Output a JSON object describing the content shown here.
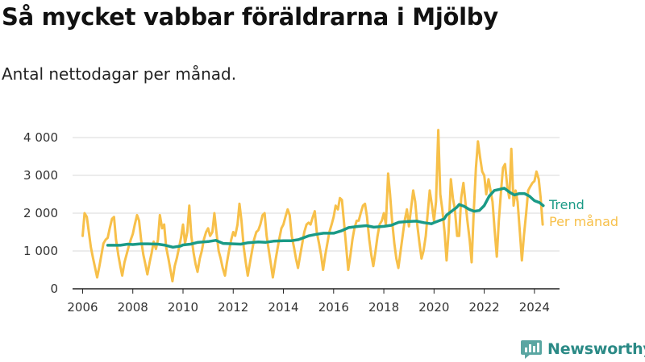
{
  "title": "Så mycket vabbar föräldrarna i Mjölby",
  "subtitle": "Antal nettodagar per månad.",
  "brand": "Newsworthy",
  "colors": {
    "monthly": "#f7c04a",
    "trend": "#1a9a86",
    "grid": "#d9d9d9",
    "axis": "#222222",
    "brand": "#2b8a86"
  },
  "chart_data": {
    "type": "line",
    "xlim": [
      2005.6,
      2025.0
    ],
    "ylim": [
      0,
      4000
    ],
    "xticks": [
      2006,
      2008,
      2010,
      2012,
      2014,
      2016,
      2018,
      2020,
      2022,
      2024
    ],
    "xtick_labels": [
      "2006",
      "2008",
      "2010",
      "2012",
      "2014",
      "2016",
      "2018",
      "2020",
      "2022",
      "2024"
    ],
    "yticks": [
      0,
      1000,
      2000,
      3000,
      4000
    ],
    "ytick_labels": [
      "0",
      "1 000",
      "2 000",
      "3 000",
      "4 000"
    ],
    "grid": "horizontal",
    "series": [
      {
        "name": "Per månad",
        "color": "#f7c04a",
        "points": [
          [
            2006.0,
            1400
          ],
          [
            2006.08,
            2000
          ],
          [
            2006.17,
            1900
          ],
          [
            2006.25,
            1500
          ],
          [
            2006.33,
            1100
          ],
          [
            2006.42,
            800
          ],
          [
            2006.5,
            550
          ],
          [
            2006.58,
            300
          ],
          [
            2006.67,
            600
          ],
          [
            2006.75,
            900
          ],
          [
            2006.83,
            1200
          ],
          [
            2006.92,
            1300
          ],
          [
            2007.0,
            1350
          ],
          [
            2007.08,
            1600
          ],
          [
            2007.17,
            1850
          ],
          [
            2007.25,
            1900
          ],
          [
            2007.33,
            1300
          ],
          [
            2007.42,
            900
          ],
          [
            2007.5,
            600
          ],
          [
            2007.58,
            350
          ],
          [
            2007.67,
            700
          ],
          [
            2007.75,
            900
          ],
          [
            2007.83,
            1100
          ],
          [
            2007.92,
            1300
          ],
          [
            2008.0,
            1450
          ],
          [
            2008.08,
            1700
          ],
          [
            2008.17,
            1950
          ],
          [
            2008.25,
            1800
          ],
          [
            2008.33,
            1300
          ],
          [
            2008.42,
            900
          ],
          [
            2008.5,
            650
          ],
          [
            2008.58,
            380
          ],
          [
            2008.67,
            700
          ],
          [
            2008.75,
            950
          ],
          [
            2008.83,
            1250
          ],
          [
            2008.92,
            1050
          ],
          [
            2009.0,
            1300
          ],
          [
            2009.08,
            1950
          ],
          [
            2009.17,
            1600
          ],
          [
            2009.25,
            1700
          ],
          [
            2009.33,
            1100
          ],
          [
            2009.42,
            800
          ],
          [
            2009.5,
            500
          ],
          [
            2009.58,
            200
          ],
          [
            2009.67,
            600
          ],
          [
            2009.75,
            800
          ],
          [
            2009.83,
            1050
          ],
          [
            2009.92,
            1350
          ],
          [
            2010.0,
            1700
          ],
          [
            2010.08,
            1200
          ],
          [
            2010.17,
            1500
          ],
          [
            2010.25,
            2200
          ],
          [
            2010.33,
            1400
          ],
          [
            2010.42,
            950
          ],
          [
            2010.5,
            650
          ],
          [
            2010.58,
            450
          ],
          [
            2010.67,
            800
          ],
          [
            2010.75,
            1000
          ],
          [
            2010.83,
            1300
          ],
          [
            2010.92,
            1500
          ],
          [
            2011.0,
            1600
          ],
          [
            2011.08,
            1400
          ],
          [
            2011.17,
            1500
          ],
          [
            2011.25,
            2000
          ],
          [
            2011.33,
            1500
          ],
          [
            2011.42,
            1000
          ],
          [
            2011.5,
            800
          ],
          [
            2011.58,
            550
          ],
          [
            2011.67,
            350
          ],
          [
            2011.75,
            700
          ],
          [
            2011.83,
            1000
          ],
          [
            2011.92,
            1300
          ],
          [
            2012.0,
            1500
          ],
          [
            2012.08,
            1400
          ],
          [
            2012.17,
            1700
          ],
          [
            2012.25,
            2250
          ],
          [
            2012.33,
            1800
          ],
          [
            2012.42,
            1100
          ],
          [
            2012.5,
            700
          ],
          [
            2012.58,
            350
          ],
          [
            2012.67,
            700
          ],
          [
            2012.75,
            1000
          ],
          [
            2012.83,
            1300
          ],
          [
            2012.92,
            1500
          ],
          [
            2013.0,
            1550
          ],
          [
            2013.08,
            1700
          ],
          [
            2013.17,
            1950
          ],
          [
            2013.25,
            2000
          ],
          [
            2013.33,
            1400
          ],
          [
            2013.42,
            1000
          ],
          [
            2013.5,
            650
          ],
          [
            2013.58,
            300
          ],
          [
            2013.67,
            700
          ],
          [
            2013.75,
            1000
          ],
          [
            2013.83,
            1300
          ],
          [
            2013.92,
            1600
          ],
          [
            2014.0,
            1700
          ],
          [
            2014.08,
            1900
          ],
          [
            2014.17,
            2100
          ],
          [
            2014.25,
            1950
          ],
          [
            2014.33,
            1400
          ],
          [
            2014.42,
            1100
          ],
          [
            2014.5,
            800
          ],
          [
            2014.58,
            550
          ],
          [
            2014.67,
            900
          ],
          [
            2014.75,
            1200
          ],
          [
            2014.83,
            1500
          ],
          [
            2014.92,
            1700
          ],
          [
            2015.0,
            1750
          ],
          [
            2015.08,
            1700
          ],
          [
            2015.17,
            1900
          ],
          [
            2015.25,
            2050
          ],
          [
            2015.33,
            1500
          ],
          [
            2015.42,
            1200
          ],
          [
            2015.5,
            900
          ],
          [
            2015.58,
            500
          ],
          [
            2015.67,
            900
          ],
          [
            2015.75,
            1200
          ],
          [
            2015.83,
            1500
          ],
          [
            2015.92,
            1700
          ],
          [
            2016.0,
            1900
          ],
          [
            2016.08,
            2200
          ],
          [
            2016.17,
            2100
          ],
          [
            2016.25,
            2400
          ],
          [
            2016.33,
            2350
          ],
          [
            2016.42,
            1700
          ],
          [
            2016.5,
            1100
          ],
          [
            2016.58,
            500
          ],
          [
            2016.67,
            900
          ],
          [
            2016.75,
            1300
          ],
          [
            2016.83,
            1600
          ],
          [
            2016.92,
            1800
          ],
          [
            2017.0,
            1800
          ],
          [
            2017.08,
            2000
          ],
          [
            2017.17,
            2200
          ],
          [
            2017.25,
            2250
          ],
          [
            2017.33,
            1900
          ],
          [
            2017.42,
            1300
          ],
          [
            2017.5,
            900
          ],
          [
            2017.58,
            600
          ],
          [
            2017.67,
            1000
          ],
          [
            2017.75,
            1400
          ],
          [
            2017.83,
            1700
          ],
          [
            2017.92,
            1800
          ],
          [
            2018.0,
            2000
          ],
          [
            2018.08,
            1700
          ],
          [
            2018.17,
            3050
          ],
          [
            2018.25,
            2500
          ],
          [
            2018.33,
            1800
          ],
          [
            2018.42,
            1200
          ],
          [
            2018.5,
            800
          ],
          [
            2018.58,
            550
          ],
          [
            2018.67,
            1000
          ],
          [
            2018.75,
            1400
          ],
          [
            2018.83,
            1800
          ],
          [
            2018.92,
            2100
          ],
          [
            2019.0,
            1650
          ],
          [
            2019.08,
            2100
          ],
          [
            2019.17,
            2600
          ],
          [
            2019.25,
            2300
          ],
          [
            2019.33,
            1700
          ],
          [
            2019.42,
            1200
          ],
          [
            2019.5,
            800
          ],
          [
            2019.58,
            1000
          ],
          [
            2019.67,
            1400
          ],
          [
            2019.75,
            2000
          ],
          [
            2019.83,
            2600
          ],
          [
            2019.92,
            2200
          ],
          [
            2020.0,
            1800
          ],
          [
            2020.08,
            2300
          ],
          [
            2020.17,
            4200
          ],
          [
            2020.25,
            2500
          ],
          [
            2020.33,
            2100
          ],
          [
            2020.42,
            1500
          ],
          [
            2020.5,
            750
          ],
          [
            2020.58,
            1500
          ],
          [
            2020.67,
            2900
          ],
          [
            2020.75,
            2400
          ],
          [
            2020.83,
            2100
          ],
          [
            2020.92,
            1400
          ],
          [
            2021.0,
            1400
          ],
          [
            2021.08,
            2400
          ],
          [
            2021.17,
            2800
          ],
          [
            2021.25,
            2300
          ],
          [
            2021.33,
            1800
          ],
          [
            2021.42,
            1300
          ],
          [
            2021.5,
            700
          ],
          [
            2021.58,
            2000
          ],
          [
            2021.67,
            3200
          ],
          [
            2021.75,
            3900
          ],
          [
            2021.83,
            3500
          ],
          [
            2021.92,
            3100
          ],
          [
            2022.0,
            3000
          ],
          [
            2022.08,
            2500
          ],
          [
            2022.17,
            2900
          ],
          [
            2022.25,
            2600
          ],
          [
            2022.33,
            2300
          ],
          [
            2022.42,
            1500
          ],
          [
            2022.5,
            850
          ],
          [
            2022.58,
            1800
          ],
          [
            2022.67,
            2600
          ],
          [
            2022.75,
            3200
          ],
          [
            2022.83,
            3300
          ],
          [
            2022.92,
            2700
          ],
          [
            2023.0,
            2400
          ],
          [
            2023.08,
            3700
          ],
          [
            2023.17,
            2200
          ],
          [
            2023.25,
            2600
          ],
          [
            2023.33,
            2300
          ],
          [
            2023.42,
            1500
          ],
          [
            2023.5,
            750
          ],
          [
            2023.58,
            1400
          ],
          [
            2023.67,
            2000
          ],
          [
            2023.75,
            2600
          ],
          [
            2023.83,
            2700
          ],
          [
            2023.92,
            2800
          ],
          [
            2024.0,
            2850
          ],
          [
            2024.08,
            3100
          ],
          [
            2024.17,
            2900
          ],
          [
            2024.25,
            2400
          ],
          [
            2024.33,
            1700
          ]
        ]
      },
      {
        "name": "Trend",
        "color": "#1a9a86",
        "points": [
          [
            2007.0,
            1150
          ],
          [
            2007.5,
            1150
          ],
          [
            2007.8,
            1180
          ],
          [
            2008.0,
            1170
          ],
          [
            2008.3,
            1190
          ],
          [
            2008.6,
            1190
          ],
          [
            2009.0,
            1180
          ],
          [
            2009.3,
            1150
          ],
          [
            2009.6,
            1100
          ],
          [
            2009.9,
            1130
          ],
          [
            2010.0,
            1160
          ],
          [
            2010.3,
            1180
          ],
          [
            2010.6,
            1230
          ],
          [
            2011.0,
            1250
          ],
          [
            2011.3,
            1280
          ],
          [
            2011.6,
            1200
          ],
          [
            2012.0,
            1190
          ],
          [
            2012.3,
            1180
          ],
          [
            2012.6,
            1220
          ],
          [
            2013.0,
            1240
          ],
          [
            2013.3,
            1230
          ],
          [
            2013.6,
            1260
          ],
          [
            2014.0,
            1270
          ],
          [
            2014.3,
            1270
          ],
          [
            2014.6,
            1300
          ],
          [
            2015.0,
            1400
          ],
          [
            2015.3,
            1440
          ],
          [
            2015.6,
            1470
          ],
          [
            2016.0,
            1470
          ],
          [
            2016.3,
            1530
          ],
          [
            2016.6,
            1620
          ],
          [
            2017.0,
            1650
          ],
          [
            2017.3,
            1670
          ],
          [
            2017.6,
            1630
          ],
          [
            2018.0,
            1650
          ],
          [
            2018.3,
            1680
          ],
          [
            2018.6,
            1760
          ],
          [
            2019.0,
            1780
          ],
          [
            2019.3,
            1790
          ],
          [
            2019.6,
            1750
          ],
          [
            2019.9,
            1720
          ],
          [
            2020.0,
            1750
          ],
          [
            2020.2,
            1800
          ],
          [
            2020.4,
            1850
          ],
          [
            2020.5,
            1950
          ],
          [
            2020.7,
            2050
          ],
          [
            2020.9,
            2150
          ],
          [
            2021.0,
            2230
          ],
          [
            2021.2,
            2180
          ],
          [
            2021.4,
            2100
          ],
          [
            2021.6,
            2050
          ],
          [
            2021.8,
            2070
          ],
          [
            2022.0,
            2200
          ],
          [
            2022.2,
            2450
          ],
          [
            2022.4,
            2600
          ],
          [
            2022.6,
            2630
          ],
          [
            2022.8,
            2660
          ],
          [
            2023.0,
            2560
          ],
          [
            2023.2,
            2480
          ],
          [
            2023.4,
            2520
          ],
          [
            2023.6,
            2520
          ],
          [
            2023.8,
            2450
          ],
          [
            2024.0,
            2330
          ],
          [
            2024.2,
            2280
          ],
          [
            2024.35,
            2200
          ]
        ]
      }
    ]
  }
}
